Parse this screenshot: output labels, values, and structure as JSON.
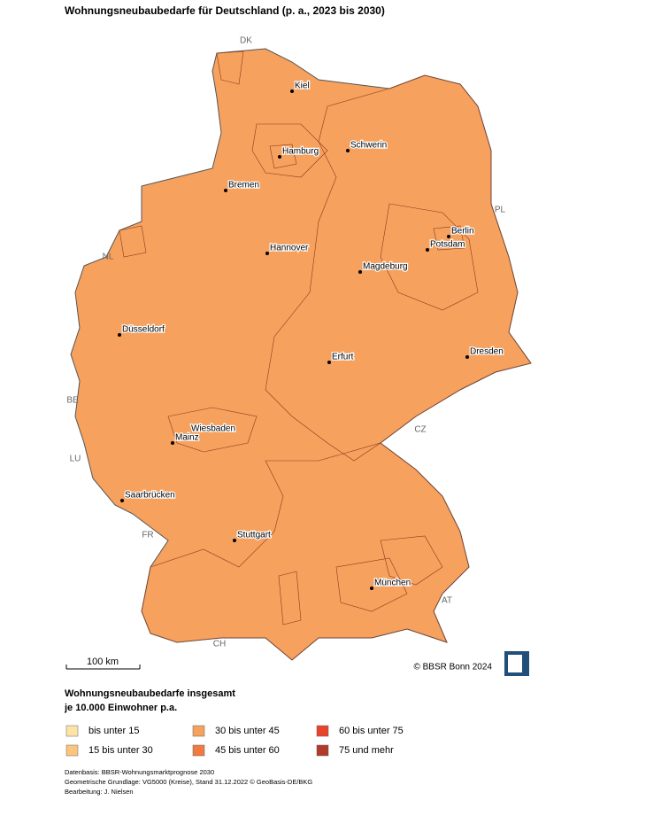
{
  "header": {
    "title": "Wohnungsneubaubedarfe für Deutschland (p. a., 2023 bis 2030)"
  },
  "map": {
    "cities": [
      "Kiel",
      "Hamburg",
      "Schwerin",
      "Bremen",
      "Berlin",
      "Potsdam",
      "Hannover",
      "Magdeburg",
      "Düsseldorf",
      "Erfurt",
      "Dresden",
      "Wiesbaden",
      "Mainz",
      "Saarbrücken",
      "Stuttgart",
      "München"
    ],
    "countries": [
      "DK",
      "PL",
      "NL",
      "BE",
      "LU",
      "CZ",
      "FR",
      "AT",
      "CH"
    ],
    "scale_label": "100 km",
    "copyright": "© BBSR Bonn 2024"
  },
  "legend": {
    "title": [
      "Wohnungsneubaubedarfe insgesamt",
      "je 10.000 Einwohner p.a."
    ],
    "items": [
      {
        "label": "bis unter 15",
        "color": "#fde3a7"
      },
      {
        "label": "15 bis unter 30",
        "color": "#fcc57e"
      },
      {
        "label": "30 bis unter 45",
        "color": "#f6a15d"
      },
      {
        "label": "45 bis unter 60",
        "color": "#f07a3f"
      },
      {
        "label": "60 bis unter 75",
        "color": "#e8442b"
      },
      {
        "label": "75 und mehr",
        "color": "#b23a2a"
      }
    ]
  },
  "footer": {
    "lines": [
      "Datenbasis: BBSR-Wohnungsmarktprognose 2030",
      "Geometrische Grundlage: VG5000 (Kreise), Stand 31.12.2022 © GeoBasis-DE/BKG",
      "Bearbeitung: J. Nielsen"
    ]
  }
}
